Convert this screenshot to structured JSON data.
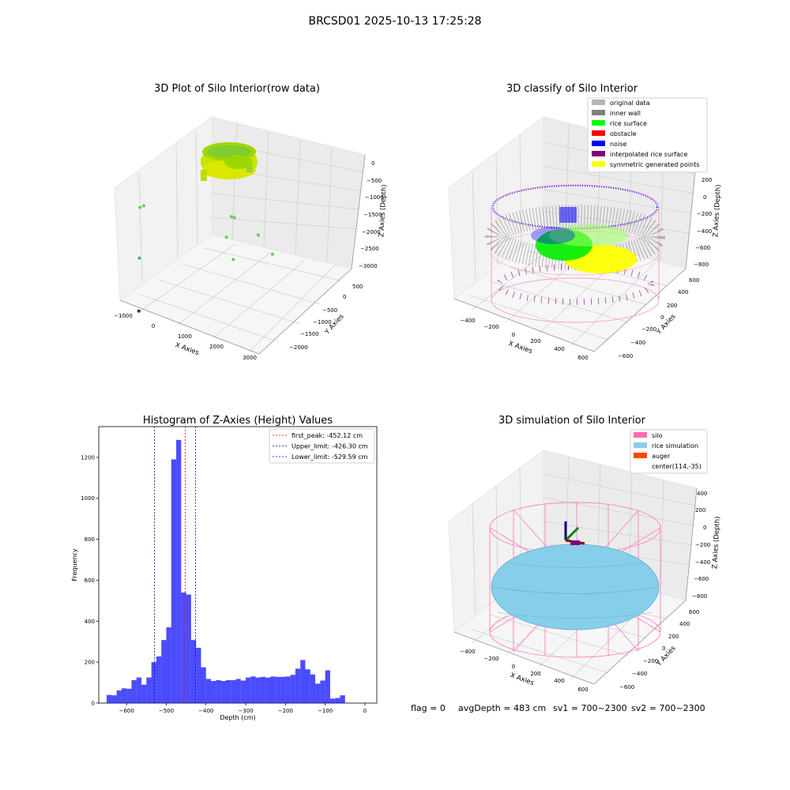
{
  "suptitle": "BRCSD01 2025-10-13 17:25:28",
  "chart_data": [
    {
      "type": "scatter",
      "projection": "3d",
      "title": "3D Plot of Silo Interior(row data)",
      "xlabel": "X Axies",
      "ylabel": "Y Axies",
      "zlabel": "Z Axies (Depth)",
      "x_ticks": [
        "−1000",
        "0",
        "1000",
        "2000",
        "3000"
      ],
      "y_ticks": [
        "500",
        "0",
        "−500",
        "−1000",
        "−1500",
        "−2000"
      ],
      "z_ticks": [
        "0",
        "−500",
        "−1000",
        "−1500",
        "−2000",
        "−2500",
        "−3000"
      ],
      "grid": true,
      "outlier_points": [
        {
          "x": 3000,
          "y": -500,
          "z": -1100,
          "color": "#66cc55"
        },
        {
          "x": 2700,
          "y": -300,
          "z": -900,
          "color": "#66cc55"
        },
        {
          "x": 2100,
          "y": -200,
          "z": -700,
          "color": "#66cc55"
        },
        {
          "x": 2000,
          "y": -250,
          "z": -650,
          "color": "#66cc55"
        },
        {
          "x": 1800,
          "y": -400,
          "z": -1000,
          "color": "#66cc55"
        },
        {
          "x": 1900,
          "y": -600,
          "z": -1300,
          "color": "#66cc55"
        },
        {
          "x": -300,
          "y": -100,
          "z": -900,
          "color": "#66cc55"
        },
        {
          "x": -400,
          "y": -100,
          "z": -950,
          "color": "#66cc55"
        },
        {
          "x": -500,
          "y": -300,
          "z": -1900,
          "color": "#4a9fb5"
        },
        {
          "x": -600,
          "y": -500,
          "z": -2900,
          "color": "#4b1a66"
        }
      ]
    },
    {
      "type": "scatter",
      "projection": "3d",
      "title": "3D classify of Silo Interior",
      "xlabel": "X Axies",
      "ylabel": "Y Axies",
      "zlabel": "Z Axies (Depth)",
      "x_ticks": [
        "−400",
        "−200",
        "0",
        "200",
        "400",
        "600"
      ],
      "y_ticks": [
        "600",
        "400",
        "200",
        "0",
        "−200",
        "−400",
        "−600"
      ],
      "z_ticks": [
        "200",
        "0",
        "−200",
        "−400",
        "−600",
        "−800"
      ],
      "grid": true,
      "legend": [
        {
          "label": "original data",
          "color": "#b5b5b5"
        },
        {
          "label": "inner wall",
          "color": "#808080"
        },
        {
          "label": "rice surface",
          "color": "#00ff00"
        },
        {
          "label": "obstacle",
          "color": "#ff0000"
        },
        {
          "label": "noise",
          "color": "#0000ff"
        },
        {
          "label": "interpolated rice surface",
          "color": "#800080"
        },
        {
          "label": "symmetric generated points",
          "color": "#ffff00"
        }
      ],
      "legend_position": "upper right"
    },
    {
      "type": "bar",
      "title": "Histogram of Z-Axies (Height) Values",
      "xlabel": "Depth (cm)",
      "ylabel": "Frequency",
      "xlim": [
        -670,
        30
      ],
      "ylim": [
        0,
        1350
      ],
      "x_ticks": [
        -600,
        -500,
        -400,
        -300,
        -200,
        -100,
        0
      ],
      "y_ticks": [
        0,
        200,
        400,
        600,
        800,
        1000,
        1200
      ],
      "bin_start": -650,
      "bin_width": 12.5,
      "color": "#0000ff",
      "values": [
        40,
        38,
        62,
        72,
        70,
        112,
        125,
        90,
        125,
        200,
        228,
        308,
        370,
        1190,
        1285,
        540,
        530,
        308,
        270,
        175,
        118,
        108,
        112,
        108,
        112,
        112,
        118,
        110,
        125,
        130,
        125,
        128,
        125,
        130,
        128,
        128,
        130,
        138,
        168,
        210,
        165,
        140,
        95,
        110,
        160,
        22,
        25,
        38
      ],
      "vlines": [
        {
          "label": "first_peak: -452.12 cm",
          "x": -452.12,
          "color": "#ff0000"
        },
        {
          "label": "Upper_limit: -426.30 cm",
          "x": -426.3,
          "color": "#0000cc"
        },
        {
          "label": "Lower_limit: -529.59 cm",
          "x": -529.59,
          "color": "#0000cc"
        }
      ],
      "legend_position": "upper right",
      "grid": false
    },
    {
      "type": "surface",
      "projection": "3d",
      "title": "3D simulation of Silo Interior",
      "xlabel": "X Axies",
      "ylabel": "Y Axies",
      "zlabel": "Z Axies (Depth)",
      "x_ticks": [
        "−400",
        "−200",
        "0",
        "200",
        "400",
        "600"
      ],
      "y_ticks": [
        "600",
        "400",
        "200",
        "0",
        "−200",
        "−400",
        "−600"
      ],
      "z_ticks": [
        "400",
        "200",
        "0",
        "−200",
        "−400",
        "−600",
        "−800"
      ],
      "grid": true,
      "legend": [
        {
          "label": "silo",
          "color": "#ff69b4"
        },
        {
          "label": "rice simulation",
          "color": "#87ceeb"
        },
        {
          "label": "auger",
          "color": "#ff4500"
        },
        {
          "label": "center(114,-35)",
          "color": ""
        }
      ],
      "legend_position": "upper right"
    }
  ],
  "footer": {
    "flag": "flag = 0",
    "avg_depth": "avgDepth = 483 cm",
    "sv1": "sv1 = 700~2300",
    "sv2": "sv2 = 700~2300"
  }
}
